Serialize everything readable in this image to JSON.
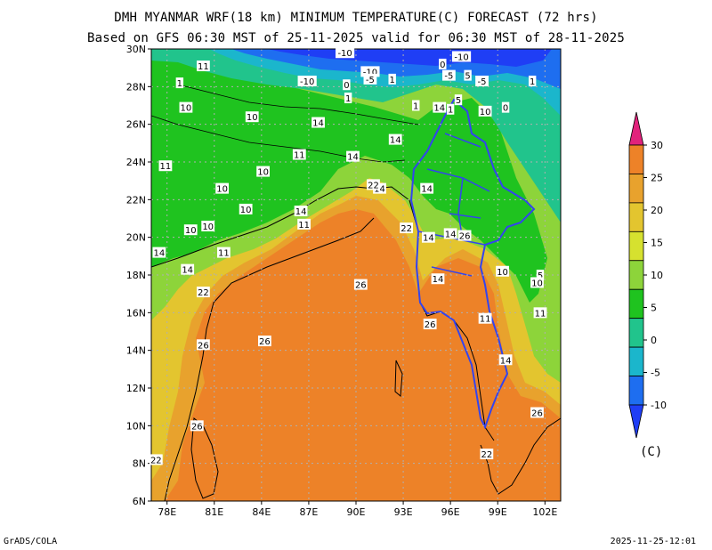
{
  "title": "DMH MYANMAR WRF(18 km) MINIMUM TEMPERATURE(C) FORECAST (72 hrs)",
  "subtitle": "Based on GFS 06:30 MST of 25-11-2025 valid for 06:30 MST of 28-11-2025",
  "footer_left": "GrADS/COLA",
  "footer_right": "2025-11-25-12:01",
  "map": {
    "lon_range": [
      77,
      103
    ],
    "lat_range": [
      6,
      30
    ],
    "lon_ticks": [
      "78E",
      "81E",
      "84E",
      "87E",
      "90E",
      "93E",
      "96E",
      "99E",
      "102E"
    ],
    "lat_ticks": [
      "30N",
      "28N",
      "26N",
      "24N",
      "22N",
      "20N",
      "18N",
      "16N",
      "14N",
      "12N",
      "10N",
      "8N",
      "6N"
    ],
    "grid": true,
    "contour_labels": [
      "-10",
      "-10",
      "-10",
      "-10",
      "-5",
      "-5",
      "-5",
      "0",
      "0",
      "0",
      "1",
      "1",
      "1",
      "1",
      "1",
      "1",
      "5",
      "5",
      "5",
      "10",
      "10",
      "10",
      "10",
      "10",
      "10",
      "10",
      "10",
      "10",
      "10",
      "11",
      "11",
      "11",
      "11",
      "11",
      "11",
      "11",
      "14",
      "14",
      "14",
      "14",
      "14",
      "14",
      "14",
      "14",
      "14",
      "14",
      "14",
      "14",
      "14",
      "22",
      "22",
      "22",
      "22",
      "22",
      "26",
      "26",
      "26",
      "26",
      "26",
      "26",
      "26"
    ]
  },
  "colorbar": {
    "ticks": [
      "30",
      "25",
      "20",
      "15",
      "10",
      "5",
      "0",
      "-5",
      "-10"
    ],
    "colors": [
      "#e1237c",
      "#ed8228",
      "#e8a22d",
      "#e3c52f",
      "#d6e12f",
      "#8dd43a",
      "#1fc31f",
      "#21c48c",
      "#1bb6cc",
      "#1e6ef0",
      "#1f3ef5"
    ],
    "unit": "(C)"
  }
}
